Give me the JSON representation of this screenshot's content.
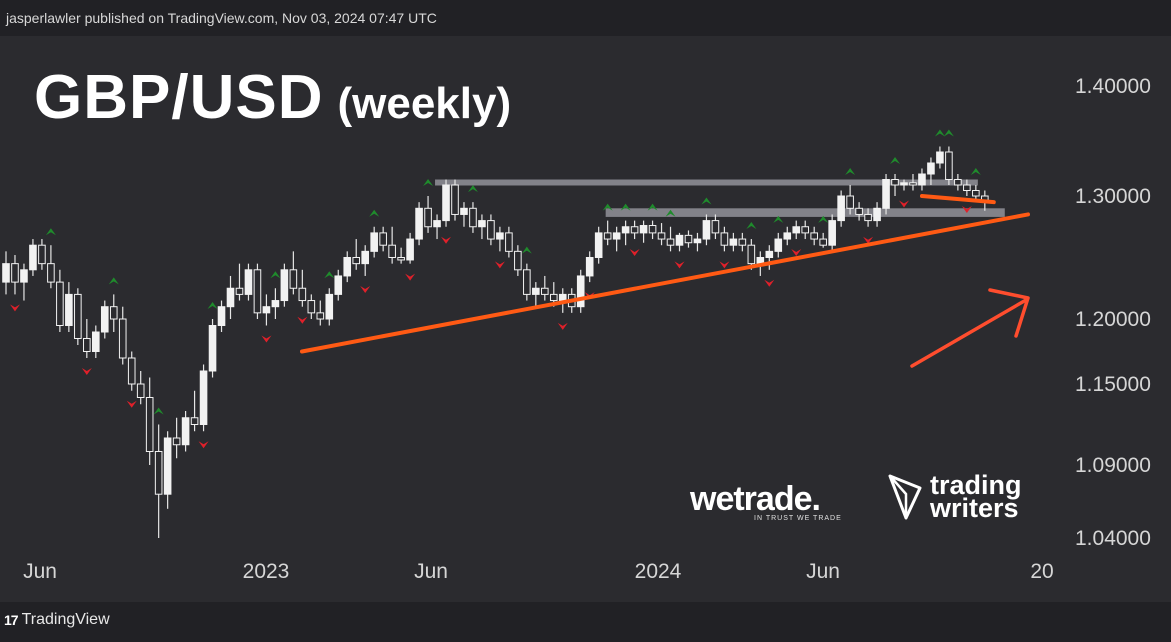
{
  "header": {
    "publisher_text": "jasperlawler published on TradingView.com, Nov 03, 2024 07:47 UTC"
  },
  "title": {
    "pair": "GBP/USD",
    "timeframe": "(weekly)"
  },
  "footer": {
    "brand": "TradingView",
    "logo_text": "17"
  },
  "logos": {
    "wetrade_name": "wetrade.",
    "wetrade_tagline": "IN TRUST WE TRADE",
    "tw_line1": "trading",
    "tw_line2": "writers"
  },
  "colors": {
    "background": "#2b2b2f",
    "candle_body": "#f2f2f2",
    "wick": "#e6e6e6",
    "fractal_up": "#1f8b2c",
    "fractal_down": "#e0202a",
    "trendline": "#ff5a14",
    "zone": "#8c8c93"
  },
  "chart_data": {
    "type": "candlestick",
    "title": "GBP/USD (weekly)",
    "y_ticks": [
      "1.40000",
      "1.30000",
      "1.20000",
      "1.15000",
      "1.09000",
      "1.04000"
    ],
    "x_ticks": [
      "Jun",
      "2023",
      "Jun",
      "2024",
      "Jun",
      "20"
    ],
    "candles": [
      [
        1.23,
        1.255,
        1.22,
        1.245
      ],
      [
        1.245,
        1.252,
        1.22,
        1.23
      ],
      [
        1.23,
        1.245,
        1.215,
        1.24
      ],
      [
        1.24,
        1.265,
        1.235,
        1.26
      ],
      [
        1.26,
        1.265,
        1.24,
        1.245
      ],
      [
        1.245,
        1.26,
        1.225,
        1.23
      ],
      [
        1.23,
        1.24,
        1.19,
        1.195
      ],
      [
        1.195,
        1.23,
        1.19,
        1.22
      ],
      [
        1.22,
        1.225,
        1.18,
        1.185
      ],
      [
        1.185,
        1.2,
        1.17,
        1.175
      ],
      [
        1.175,
        1.195,
        1.17,
        1.19
      ],
      [
        1.19,
        1.215,
        1.185,
        1.21
      ],
      [
        1.21,
        1.22,
        1.19,
        1.2
      ],
      [
        1.2,
        1.21,
        1.165,
        1.17
      ],
      [
        1.17,
        1.175,
        1.145,
        1.15
      ],
      [
        1.15,
        1.16,
        1.135,
        1.14
      ],
      [
        1.14,
        1.155,
        1.09,
        1.1
      ],
      [
        1.1,
        1.12,
        1.04,
        1.07
      ],
      [
        1.07,
        1.115,
        1.06,
        1.11
      ],
      [
        1.11,
        1.125,
        1.095,
        1.105
      ],
      [
        1.105,
        1.13,
        1.1,
        1.125
      ],
      [
        1.125,
        1.145,
        1.115,
        1.12
      ],
      [
        1.12,
        1.165,
        1.115,
        1.16
      ],
      [
        1.16,
        1.2,
        1.155,
        1.195
      ],
      [
        1.195,
        1.215,
        1.19,
        1.21
      ],
      [
        1.21,
        1.235,
        1.2,
        1.225
      ],
      [
        1.225,
        1.245,
        1.215,
        1.22
      ],
      [
        1.22,
        1.245,
        1.215,
        1.24
      ],
      [
        1.24,
        1.245,
        1.2,
        1.205
      ],
      [
        1.205,
        1.22,
        1.195,
        1.21
      ],
      [
        1.21,
        1.225,
        1.2,
        1.215
      ],
      [
        1.215,
        1.245,
        1.21,
        1.24
      ],
      [
        1.24,
        1.255,
        1.22,
        1.225
      ],
      [
        1.225,
        1.24,
        1.21,
        1.215
      ],
      [
        1.215,
        1.22,
        1.2,
        1.205
      ],
      [
        1.205,
        1.215,
        1.195,
        1.2
      ],
      [
        1.2,
        1.225,
        1.195,
        1.22
      ],
      [
        1.22,
        1.24,
        1.215,
        1.235
      ],
      [
        1.235,
        1.255,
        1.23,
        1.25
      ],
      [
        1.25,
        1.265,
        1.24,
        1.245
      ],
      [
        1.245,
        1.26,
        1.235,
        1.255
      ],
      [
        1.255,
        1.275,
        1.25,
        1.27
      ],
      [
        1.27,
        1.275,
        1.255,
        1.26
      ],
      [
        1.26,
        1.275,
        1.245,
        1.25
      ],
      [
        1.25,
        1.258,
        1.245,
        1.248
      ],
      [
        1.248,
        1.27,
        1.245,
        1.265
      ],
      [
        1.265,
        1.295,
        1.26,
        1.29
      ],
      [
        1.29,
        1.3,
        1.27,
        1.275
      ],
      [
        1.275,
        1.285,
        1.265,
        1.28
      ],
      [
        1.28,
        1.315,
        1.275,
        1.31
      ],
      [
        1.31,
        1.315,
        1.28,
        1.285
      ],
      [
        1.285,
        1.295,
        1.275,
        1.29
      ],
      [
        1.29,
        1.295,
        1.27,
        1.275
      ],
      [
        1.275,
        1.285,
        1.265,
        1.28
      ],
      [
        1.28,
        1.285,
        1.26,
        1.265
      ],
      [
        1.265,
        1.275,
        1.255,
        1.27
      ],
      [
        1.27,
        1.275,
        1.25,
        1.255
      ],
      [
        1.255,
        1.26,
        1.235,
        1.24
      ],
      [
        1.24,
        1.245,
        1.215,
        1.22
      ],
      [
        1.22,
        1.23,
        1.21,
        1.225
      ],
      [
        1.225,
        1.235,
        1.215,
        1.22
      ],
      [
        1.22,
        1.23,
        1.21,
        1.215
      ],
      [
        1.215,
        1.225,
        1.205,
        1.22
      ],
      [
        1.22,
        1.225,
        1.205,
        1.21
      ],
      [
        1.21,
        1.24,
        1.205,
        1.235
      ],
      [
        1.235,
        1.255,
        1.23,
        1.25
      ],
      [
        1.25,
        1.275,
        1.245,
        1.27
      ],
      [
        1.27,
        1.28,
        1.26,
        1.265
      ],
      [
        1.265,
        1.275,
        1.255,
        1.27
      ],
      [
        1.27,
        1.28,
        1.26,
        1.275
      ],
      [
        1.275,
        1.28,
        1.265,
        1.27
      ],
      [
        1.27,
        1.28,
        1.262,
        1.276
      ],
      [
        1.276,
        1.28,
        1.265,
        1.27
      ],
      [
        1.27,
        1.278,
        1.26,
        1.265
      ],
      [
        1.265,
        1.275,
        1.255,
        1.26
      ],
      [
        1.26,
        1.27,
        1.255,
        1.268
      ],
      [
        1.268,
        1.272,
        1.258,
        1.262
      ],
      [
        1.262,
        1.27,
        1.255,
        1.265
      ],
      [
        1.265,
        1.285,
        1.26,
        1.28
      ],
      [
        1.28,
        1.285,
        1.265,
        1.27
      ],
      [
        1.27,
        1.275,
        1.255,
        1.26
      ],
      [
        1.26,
        1.27,
        1.255,
        1.265
      ],
      [
        1.265,
        1.27,
        1.255,
        1.26
      ],
      [
        1.26,
        1.265,
        1.24,
        1.245
      ],
      [
        1.245,
        1.255,
        1.235,
        1.25
      ],
      [
        1.25,
        1.26,
        1.24,
        1.255
      ],
      [
        1.255,
        1.27,
        1.25,
        1.265
      ],
      [
        1.265,
        1.275,
        1.26,
        1.27
      ],
      [
        1.27,
        1.28,
        1.265,
        1.275
      ],
      [
        1.275,
        1.28,
        1.265,
        1.27
      ],
      [
        1.27,
        1.275,
        1.26,
        1.265
      ],
      [
        1.265,
        1.27,
        1.258,
        1.26
      ],
      [
        1.26,
        1.285,
        1.255,
        1.28
      ],
      [
        1.28,
        1.305,
        1.275,
        1.3
      ],
      [
        1.3,
        1.31,
        1.285,
        1.29
      ],
      [
        1.29,
        1.295,
        1.28,
        1.285
      ],
      [
        1.285,
        1.29,
        1.275,
        1.28
      ],
      [
        1.28,
        1.295,
        1.275,
        1.29
      ],
      [
        1.29,
        1.32,
        1.285,
        1.315
      ],
      [
        1.315,
        1.32,
        1.3,
        1.31
      ],
      [
        1.31,
        1.315,
        1.305,
        1.312
      ],
      [
        1.312,
        1.32,
        1.305,
        1.31
      ],
      [
        1.31,
        1.325,
        1.305,
        1.32
      ],
      [
        1.32,
        1.335,
        1.31,
        1.33
      ],
      [
        1.33,
        1.345,
        1.325,
        1.34
      ],
      [
        1.34,
        1.345,
        1.31,
        1.315
      ],
      [
        1.315,
        1.32,
        1.305,
        1.31
      ],
      [
        1.31,
        1.315,
        1.3,
        1.305
      ],
      [
        1.305,
        1.31,
        1.295,
        1.3
      ],
      [
        1.3,
        1.305,
        1.288,
        1.295
      ]
    ],
    "fractals_up": [
      5,
      12,
      17,
      23,
      30,
      36,
      41,
      47,
      52,
      58,
      67,
      69,
      72,
      74,
      78,
      83,
      86,
      91,
      94,
      99,
      104,
      105,
      108
    ],
    "fractals_down": [
      1,
      9,
      14,
      22,
      29,
      33,
      40,
      45,
      49,
      55,
      62,
      65,
      70,
      75,
      80,
      85,
      88,
      96,
      100,
      107
    ],
    "trendline_lower": [
      [
        1.175,
        1.228
      ],
      [
        1.24,
        1.285
      ]
    ],
    "trendline_top_short": [
      1.3,
      1.295
    ],
    "zones": [
      [
        1.31,
        1.315
      ],
      [
        1.283,
        1.29
      ]
    ]
  }
}
